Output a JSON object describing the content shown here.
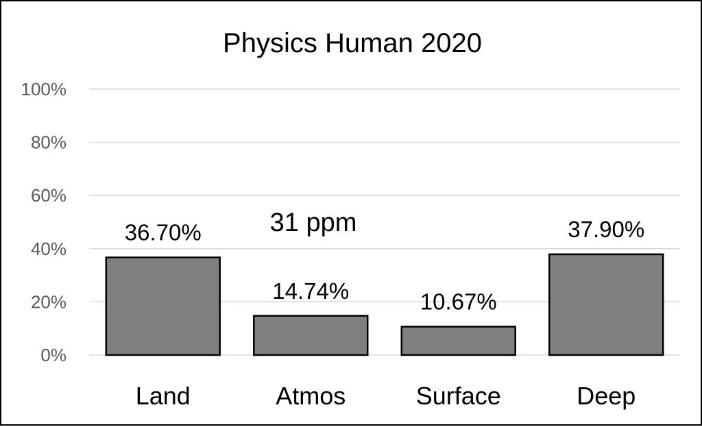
{
  "chart_data": {
    "type": "bar",
    "title": "Physics Human 2020",
    "categories": [
      "Land",
      "Atmos",
      "Surface",
      "Deep"
    ],
    "values": [
      36.7,
      14.74,
      10.67,
      37.9
    ],
    "data_labels": [
      "36.70%",
      "14.74%",
      "10.67%",
      "37.90%"
    ],
    "yticks": [
      "0%",
      "20%",
      "40%",
      "60%",
      "80%",
      "100%"
    ],
    "ylim": [
      0,
      100
    ],
    "xlabel": "",
    "ylabel": "",
    "grid": true,
    "legend": "none",
    "annotation": "31 ppm",
    "colors": {
      "bar": "#808080",
      "bar_edge": "#000000",
      "grid": "#d9d9d9"
    }
  }
}
